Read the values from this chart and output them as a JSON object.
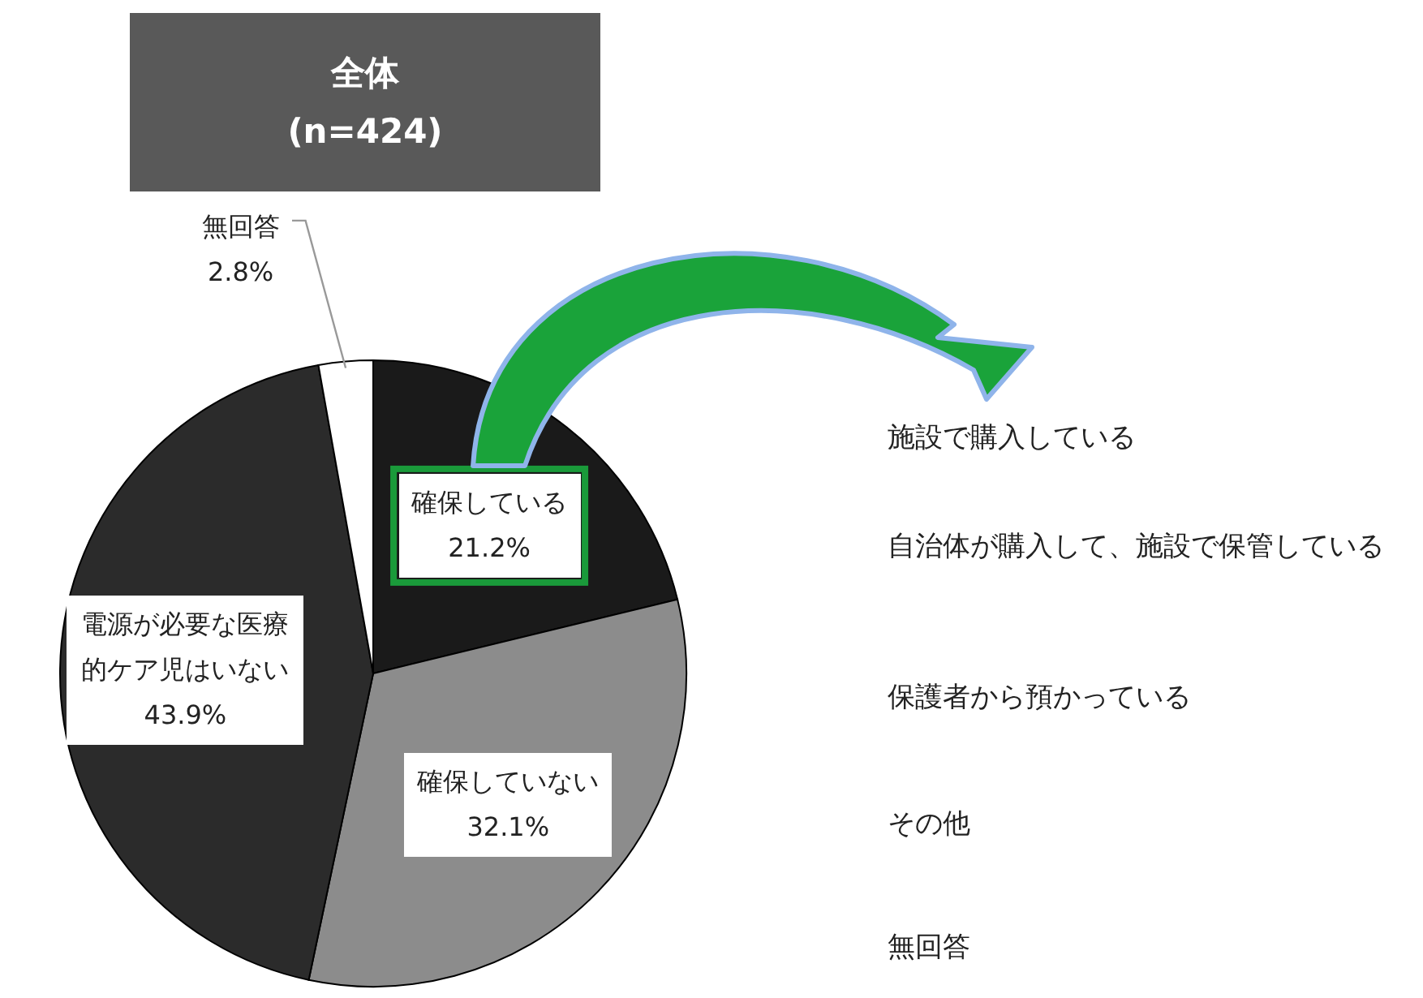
{
  "chart_data": [
    {
      "type": "pie",
      "title": "全体",
      "subtitle": "(n=424)",
      "categories": [
        "確保している",
        "確保していない",
        "電源が必要な医療的ケア児はいない",
        "無回答"
      ],
      "values": [
        21.2,
        32.1,
        43.9,
        2.8
      ],
      "colors": [
        "#1a1a1a",
        "#8c8c8c",
        "#2b2b2b",
        "#ffffff"
      ],
      "value_labels": [
        "21.2%",
        "32.1%",
        "43.9%",
        "2.8%"
      ]
    },
    {
      "type": "other",
      "annotations": [
        "施設で購入している",
        "自治体が購入して、施設で保管している",
        "保護者から預かっている",
        "その他",
        "無回答"
      ]
    }
  ]
}
